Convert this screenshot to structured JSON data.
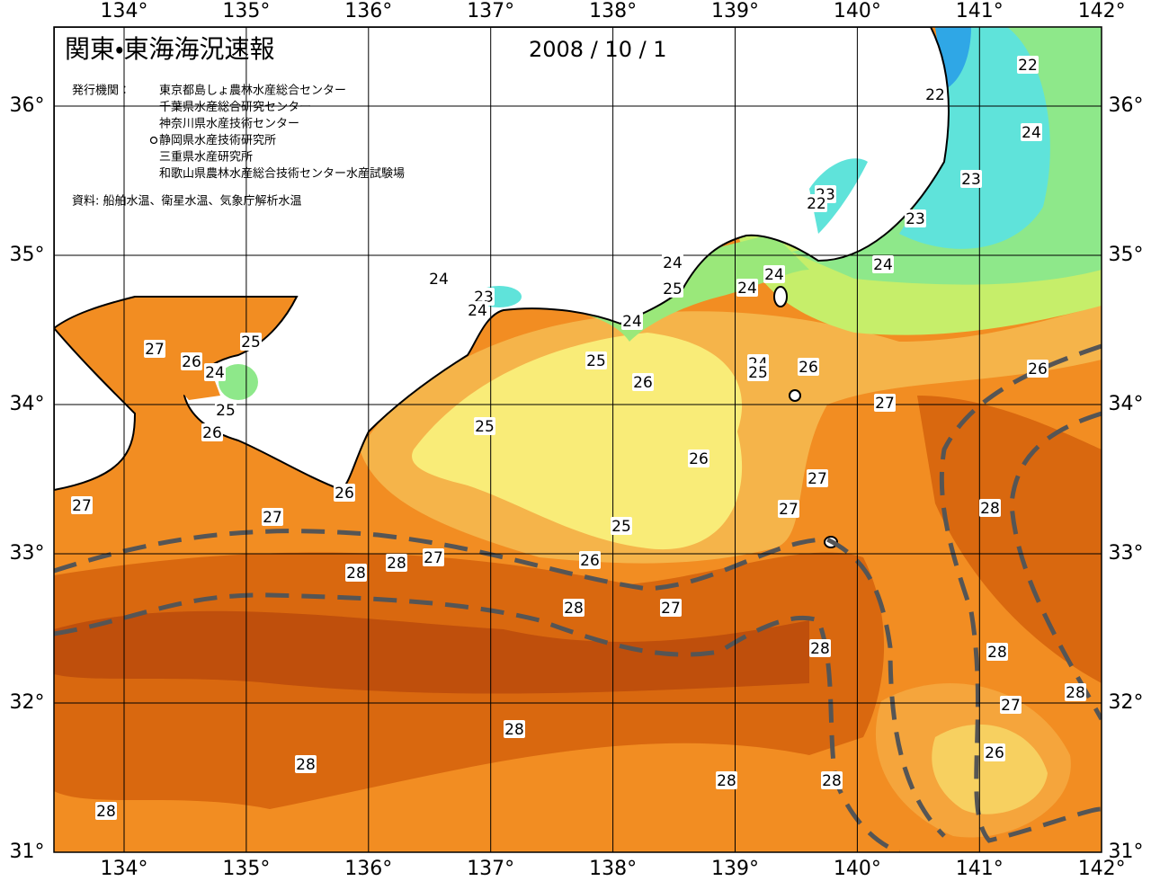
{
  "header": {
    "title": "関東・東海海況速報",
    "date": "2008 / 10 / 1",
    "issuer_label": "発行機関：",
    "issuers": [
      "東京都島しょ農林水産総合センター",
      "千葉県水産総合研究センター",
      "神奈川県水産技術センター",
      "静岡県水産技術研究所",
      "三重県水産研究所",
      "和歌山県農林水産総合技術センター水産試験場"
    ],
    "source": "資料: 船舶水温、衛星水温、気象庁解析水温"
  },
  "map": {
    "lon_ticks": [
      {
        "value": 134,
        "label": "134°"
      },
      {
        "value": 135,
        "label": "135°"
      },
      {
        "value": 136,
        "label": "136°"
      },
      {
        "value": 137,
        "label": "137°"
      },
      {
        "value": 138,
        "label": "138°"
      },
      {
        "value": 139,
        "label": "139°"
      },
      {
        "value": 140,
        "label": "140°"
      },
      {
        "value": 141,
        "label": "141°"
      },
      {
        "value": 142,
        "label": "142°"
      }
    ],
    "lat_ticks": [
      {
        "value": 36,
        "label": "36°"
      },
      {
        "value": 35,
        "label": "35°"
      },
      {
        "value": 34,
        "label": "34°"
      },
      {
        "value": 33,
        "label": "33°"
      },
      {
        "value": 32,
        "label": "32°"
      },
      {
        "value": 31,
        "label": "31°"
      }
    ],
    "contour_labels": [
      22,
      22,
      24,
      23,
      23,
      22,
      23,
      24,
      24,
      24,
      23,
      24,
      25,
      24,
      24,
      24,
      27,
      25,
      26,
      24,
      25,
      24,
      25,
      26,
      26,
      26,
      25,
      27,
      26,
      25,
      26,
      27,
      26,
      27,
      27,
      28,
      27,
      25,
      27,
      28,
      28,
      26,
      28,
      27,
      28,
      28,
      28,
      27,
      28,
      26,
      28,
      28,
      28,
      28
    ]
  }
}
